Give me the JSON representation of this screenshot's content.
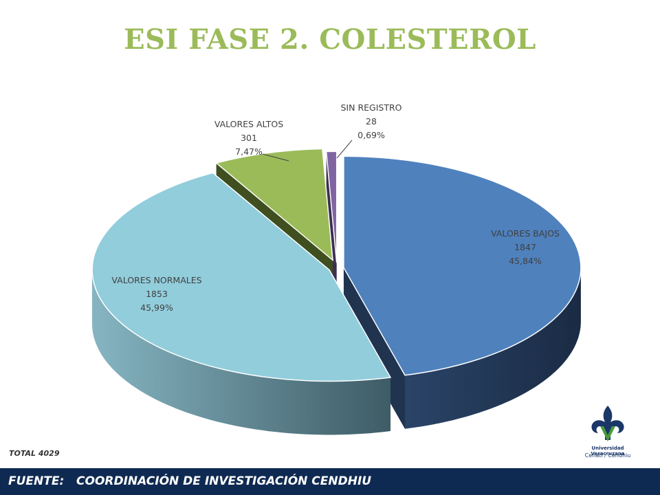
{
  "title": "ESI FASE 2. COLESTEROL",
  "total_label": "TOTAL 4029",
  "footer": {
    "text": "FUENTE:   COORDINACIÓN DE INVESTIGACIÓN CENDHIU"
  },
  "logo": {
    "line1": "Universidad Veracruzana",
    "line2": "Cenati / Cendhiu",
    "icon": "fleur-de-lis-logo-icon"
  },
  "chart_data": {
    "type": "pie",
    "style": "3d-exploded",
    "total": 4029,
    "slices": [
      {
        "label": "VALORES BAJOS",
        "value": 1847,
        "percent": "45,84%",
        "color": "#4f81bd",
        "side_color": "#203450"
      },
      {
        "label": "VALORES NORMALES",
        "value": 1853,
        "percent": "45,99%",
        "color": "#92cddc",
        "side_color": "#5a8a97"
      },
      {
        "label": "VALORES ALTOS",
        "value": 301,
        "percent": "7,47%",
        "color": "#9bbb59",
        "side_color": "#3f4f1f"
      },
      {
        "label": "SIN REGISTRO",
        "value": 28,
        "percent": "0,69%",
        "color": "#8064a2",
        "side_color": "#3d2f52"
      }
    ]
  }
}
